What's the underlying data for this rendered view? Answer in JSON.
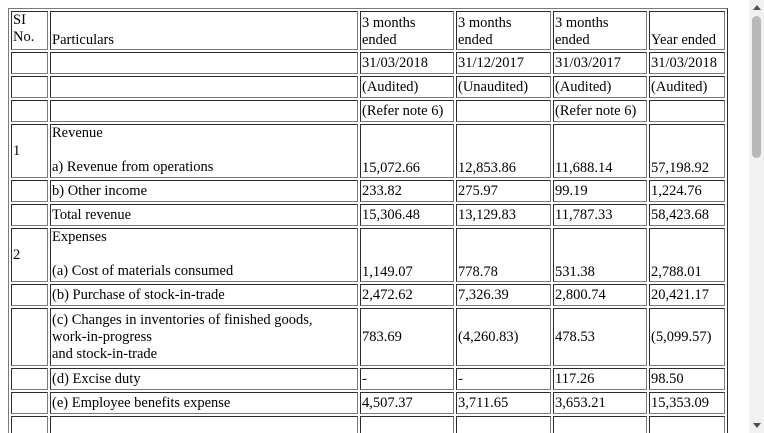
{
  "headers": {
    "si_no": [
      "SI",
      "No."
    ],
    "particulars": "Particulars",
    "col1": {
      "period": [
        "3 months",
        "ended"
      ],
      "date": "31/03/2018",
      "status": "(Audited)",
      "note": "(Refer note 6)"
    },
    "col2": {
      "period": [
        "3 months",
        "ended"
      ],
      "date": "31/12/2017",
      "status": "(Unaudited)",
      "note": ""
    },
    "col3": {
      "period": [
        "3 months",
        "ended"
      ],
      "date": "31/03/2017",
      "status": "(Audited)",
      "note": "(Refer note 6)"
    },
    "col4": {
      "period": [
        "Year ended"
      ],
      "date": "31/03/2018",
      "status": "(Audited)",
      "note": ""
    }
  },
  "sections": {
    "revenue": {
      "no": "1",
      "title": "Revenue",
      "rows": [
        {
          "label": "a) Revenue from operations",
          "v": [
            "15,072.66",
            "12,853.86",
            "11,688.14",
            "57,198.92"
          ]
        },
        {
          "label": "b) Other income",
          "v": [
            "233.82",
            "275.97",
            "99.19",
            "1,224.76"
          ]
        },
        {
          "label": "Total revenue",
          "v": [
            "15,306.48",
            "13,129.83",
            "11,787.33",
            "58,423.68"
          ]
        }
      ]
    },
    "expenses": {
      "no": "2",
      "title": "Expenses",
      "rows": [
        {
          "label": "(a) Cost of materials consumed",
          "v": [
            "1,149.07",
            "778.78",
            "531.38",
            "2,788.01"
          ]
        },
        {
          "label": "(b) Purchase of stock-in-trade",
          "v": [
            "2,472.62",
            "7,326.39",
            "2,800.74",
            "20,421.17"
          ]
        },
        {
          "label_lines": [
            "(c) Changes in inventories of finished goods,",
            "work-in-progress",
            "and stock-in-trade"
          ],
          "v": [
            "783.69",
            "(4,260.83)",
            "478.53",
            "(5,099.57)"
          ]
        },
        {
          "label": "(d) Excise duty",
          "v": [
            "-",
            "-",
            "117.26",
            "98.50"
          ]
        },
        {
          "label": "(e) Employee benefits expense",
          "v": [
            "4,507.37",
            "3,711.65",
            "3,653.21",
            "15,353.09"
          ]
        }
      ]
    }
  }
}
